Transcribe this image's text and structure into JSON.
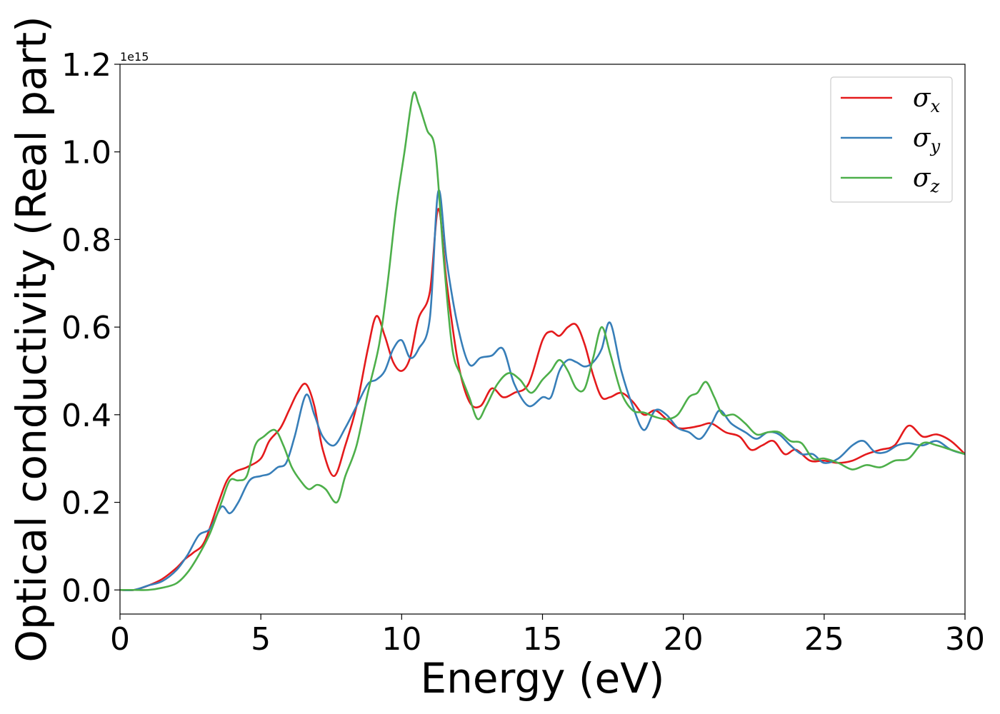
{
  "chart_data": {
    "type": "line",
    "xlabel": "Energy (eV)",
    "ylabel": "Optical conductivity (Real part)",
    "y_offset_label": "1e15",
    "xlim": [
      0,
      30
    ],
    "ylim": [
      -0.055,
      1.2
    ],
    "xticks": [
      0,
      5,
      10,
      15,
      20,
      25,
      30
    ],
    "xtick_labels": [
      "0",
      "5",
      "10",
      "15",
      "20",
      "25",
      "30"
    ],
    "yticks": [
      0.0,
      0.2,
      0.4,
      0.6,
      0.8,
      1.0,
      1.2
    ],
    "ytick_labels": [
      "0.0",
      "0.2",
      "0.4",
      "0.6",
      "0.8",
      "1.0",
      "1.2"
    ],
    "grid": false,
    "legend_position": "top-right",
    "series": [
      {
        "name": "σx",
        "symbol": "σ",
        "subscript": "x",
        "color": "#e41a1c",
        "x": [
          0,
          0.5,
          1,
          1.5,
          2,
          2.3,
          2.6,
          3,
          3.5,
          3.8,
          4.1,
          4.5,
          5,
          5.3,
          5.7,
          6,
          6.3,
          6.6,
          6.9,
          7.2,
          7.6,
          8,
          8.4,
          8.8,
          9.1,
          9.4,
          9.7,
          10,
          10.3,
          10.6,
          11,
          11.3,
          11.6,
          12,
          12.4,
          12.8,
          13.2,
          13.6,
          14,
          14.5,
          15,
          15.3,
          15.6,
          15.9,
          16.2,
          16.5,
          16.8,
          17.1,
          17.4,
          17.8,
          18.2,
          18.6,
          19,
          19.4,
          19.8,
          20.2,
          20.6,
          21,
          21.5,
          22,
          22.4,
          22.8,
          23.2,
          23.6,
          24,
          24.5,
          25,
          25.5,
          26,
          26.5,
          27,
          27.5,
          28,
          28.5,
          29,
          29.5,
          30
        ],
        "y": [
          0.0,
          0.0,
          0.01,
          0.025,
          0.05,
          0.07,
          0.085,
          0.11,
          0.2,
          0.25,
          0.27,
          0.28,
          0.3,
          0.34,
          0.37,
          0.41,
          0.45,
          0.47,
          0.42,
          0.32,
          0.26,
          0.33,
          0.42,
          0.55,
          0.625,
          0.58,
          0.52,
          0.5,
          0.53,
          0.62,
          0.68,
          0.87,
          0.7,
          0.52,
          0.43,
          0.42,
          0.46,
          0.44,
          0.45,
          0.47,
          0.57,
          0.59,
          0.58,
          0.6,
          0.605,
          0.56,
          0.49,
          0.44,
          0.44,
          0.45,
          0.43,
          0.4,
          0.41,
          0.39,
          0.37,
          0.37,
          0.375,
          0.38,
          0.36,
          0.35,
          0.32,
          0.33,
          0.34,
          0.31,
          0.32,
          0.295,
          0.295,
          0.29,
          0.295,
          0.31,
          0.32,
          0.33,
          0.375,
          0.35,
          0.355,
          0.34,
          0.31
        ]
      },
      {
        "name": "σy",
        "symbol": "σ",
        "subscript": "y",
        "color": "#377eb8",
        "x": [
          0,
          0.5,
          1,
          1.5,
          2,
          2.4,
          2.8,
          3.2,
          3.6,
          3.9,
          4.2,
          4.6,
          5,
          5.3,
          5.6,
          5.9,
          6.2,
          6.6,
          6.9,
          7.2,
          7.6,
          8,
          8.4,
          8.8,
          9.1,
          9.4,
          9.7,
          10,
          10.3,
          10.6,
          11,
          11.3,
          11.6,
          12,
          12.4,
          12.8,
          13.2,
          13.6,
          14,
          14.5,
          15,
          15.3,
          15.6,
          15.9,
          16.2,
          16.5,
          16.8,
          17.1,
          17.4,
          17.8,
          18.2,
          18.6,
          19,
          19.4,
          19.8,
          20.2,
          20.6,
          21,
          21.3,
          21.7,
          22.2,
          22.6,
          23,
          23.4,
          23.8,
          24.2,
          24.6,
          25,
          25.5,
          26,
          26.4,
          26.8,
          27.2,
          27.6,
          28,
          28.5,
          29,
          29.5,
          30
        ],
        "y": [
          0.0,
          0.0,
          0.01,
          0.02,
          0.045,
          0.08,
          0.125,
          0.14,
          0.19,
          0.175,
          0.2,
          0.25,
          0.26,
          0.265,
          0.28,
          0.29,
          0.35,
          0.445,
          0.4,
          0.35,
          0.33,
          0.37,
          0.42,
          0.47,
          0.48,
          0.5,
          0.55,
          0.57,
          0.53,
          0.55,
          0.62,
          0.91,
          0.75,
          0.6,
          0.515,
          0.53,
          0.535,
          0.55,
          0.47,
          0.42,
          0.44,
          0.44,
          0.5,
          0.525,
          0.52,
          0.51,
          0.52,
          0.55,
          0.61,
          0.5,
          0.42,
          0.365,
          0.41,
          0.4,
          0.37,
          0.36,
          0.345,
          0.38,
          0.41,
          0.38,
          0.36,
          0.345,
          0.36,
          0.355,
          0.33,
          0.31,
          0.31,
          0.29,
          0.3,
          0.33,
          0.34,
          0.315,
          0.315,
          0.33,
          0.335,
          0.33,
          0.34,
          0.32,
          0.31
        ]
      },
      {
        "name": "σz",
        "symbol": "σ",
        "subscript": "z",
        "color": "#4daf4a",
        "x": [
          0,
          0.5,
          1,
          1.5,
          2,
          2.4,
          2.8,
          3.2,
          3.6,
          3.9,
          4.2,
          4.5,
          4.8,
          5.1,
          5.5,
          5.8,
          6.1,
          6.4,
          6.7,
          7,
          7.3,
          7.7,
          8,
          8.4,
          8.8,
          9.2,
          9.5,
          9.8,
          10.1,
          10.4,
          10.6,
          10.9,
          11.2,
          11.5,
          11.8,
          12.1,
          12.4,
          12.7,
          13,
          13.4,
          13.8,
          14.2,
          14.6,
          15,
          15.3,
          15.6,
          15.9,
          16.2,
          16.5,
          16.8,
          17.1,
          17.4,
          17.8,
          18.2,
          18.6,
          19,
          19.4,
          19.8,
          20.2,
          20.5,
          20.8,
          21.1,
          21.4,
          21.8,
          22.2,
          22.6,
          23,
          23.4,
          23.8,
          24.2,
          24.6,
          25,
          25.5,
          26,
          26.5,
          27,
          27.5,
          28,
          28.5,
          29,
          29.5,
          30
        ],
        "y": [
          0.0,
          0.0,
          0.0,
          0.005,
          0.015,
          0.04,
          0.08,
          0.13,
          0.2,
          0.25,
          0.25,
          0.26,
          0.33,
          0.35,
          0.365,
          0.33,
          0.28,
          0.25,
          0.23,
          0.24,
          0.23,
          0.2,
          0.26,
          0.33,
          0.45,
          0.56,
          0.7,
          0.87,
          1.0,
          1.13,
          1.11,
          1.05,
          1.0,
          0.75,
          0.55,
          0.49,
          0.44,
          0.39,
          0.42,
          0.47,
          0.495,
          0.48,
          0.45,
          0.48,
          0.5,
          0.525,
          0.5,
          0.46,
          0.46,
          0.53,
          0.6,
          0.54,
          0.45,
          0.41,
          0.405,
          0.395,
          0.39,
          0.4,
          0.44,
          0.45,
          0.475,
          0.44,
          0.4,
          0.4,
          0.38,
          0.355,
          0.36,
          0.36,
          0.34,
          0.335,
          0.3,
          0.3,
          0.29,
          0.275,
          0.285,
          0.28,
          0.295,
          0.3,
          0.335,
          0.33,
          0.32,
          0.31
        ]
      }
    ]
  }
}
